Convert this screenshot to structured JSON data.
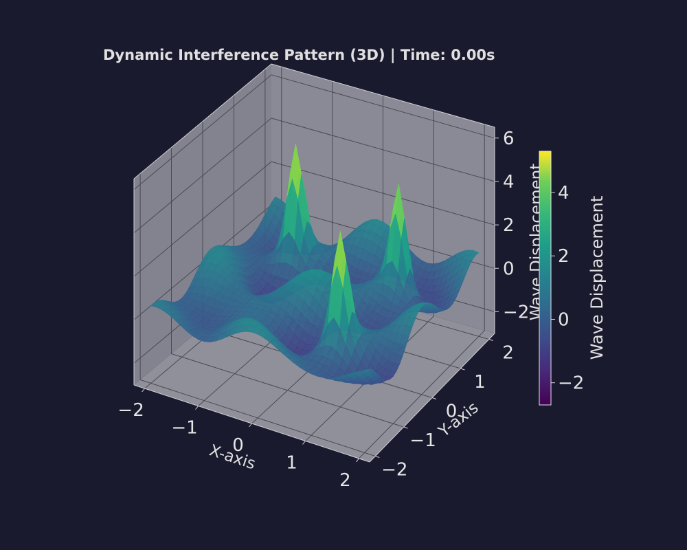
{
  "chart_data": {
    "type": "surface3d",
    "title": "Dynamic Interference Pattern (3D) | Time: 0.00s",
    "xlabel": "X-axis",
    "ylabel": "Y-axis",
    "zlabel": "Wave Displacement",
    "xlim": [
      -2.2,
      2.2
    ],
    "ylim": [
      -2.2,
      2.2
    ],
    "zlim": [
      -3,
      6.5
    ],
    "x_ticks": [
      -2,
      -1,
      0,
      1,
      2
    ],
    "y_ticks": [
      -2,
      -1,
      0,
      1,
      2
    ],
    "z_ticks": [
      -2,
      0,
      2,
      4,
      6
    ],
    "colormap": "viridis",
    "colorbar": {
      "label": "Wave Displacement",
      "range": [
        -2.7,
        5.3
      ],
      "ticks": [
        -2,
        0,
        2,
        4
      ]
    },
    "sources": [
      {
        "x": -1.0,
        "y": 1.0,
        "peak": 5.3
      },
      {
        "x": 1.0,
        "y": 1.0,
        "peak": 5.3
      },
      {
        "x": 1.0,
        "y": -1.0,
        "peak": 5.3
      }
    ],
    "grid": true,
    "colors": {
      "background": "#1a1a2e",
      "pane": "#8a8a96",
      "grid": "#4a4a52",
      "text": "#e6e6e6"
    }
  }
}
